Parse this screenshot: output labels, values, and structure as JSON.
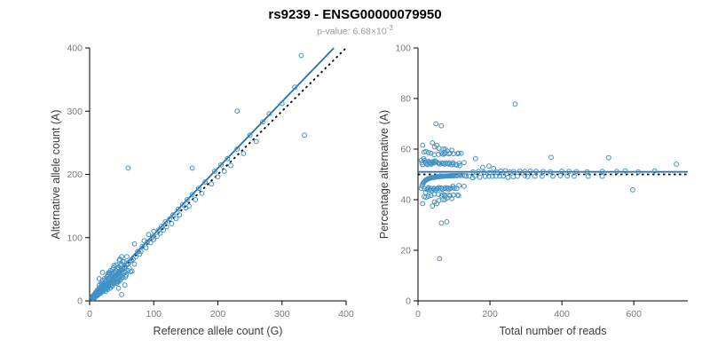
{
  "title": "rs9239 - ENSG00000079950",
  "subtitle": {
    "prefix": "p-value: ",
    "mantissa": "6.68×10",
    "exponent": "-3"
  },
  "colors": {
    "point": "#4292c6",
    "fit_line": "#2171b5",
    "reference_line": "#000000",
    "axis": "#000000",
    "tick_label": "#7a7a7a",
    "axis_label": "#3c3c3c",
    "subtitle": "#9a9a9a"
  },
  "chart_data": [
    {
      "type": "scatter",
      "title": "",
      "xlabel": "Reference allele count (G)",
      "ylabel": "Alternative allele count (A)",
      "xlim": [
        0,
        400
      ],
      "ylim": [
        0,
        400
      ],
      "xticks": [
        0,
        100,
        200,
        300,
        400
      ],
      "yticks": [
        0,
        100,
        200,
        300,
        400
      ],
      "grid": false,
      "legend": false,
      "fit_line": {
        "type": "regression",
        "slope": 1.05,
        "intercept": 0,
        "style": "solid"
      },
      "reference_line": {
        "type": "identity",
        "style": "dotted"
      },
      "points": [
        [
          4,
          5
        ],
        [
          5,
          4
        ],
        [
          5,
          6
        ],
        [
          6,
          7
        ],
        [
          6,
          5
        ],
        [
          7,
          6
        ],
        [
          7,
          9
        ],
        [
          8,
          7
        ],
        [
          8,
          10
        ],
        [
          9,
          8
        ],
        [
          9,
          11
        ],
        [
          10,
          9
        ],
        [
          10,
          12
        ],
        [
          10,
          8
        ],
        [
          11,
          10
        ],
        [
          11,
          13
        ],
        [
          12,
          11
        ],
        [
          12,
          9
        ],
        [
          12,
          14
        ],
        [
          13,
          12
        ],
        [
          13,
          16
        ],
        [
          14,
          13
        ],
        [
          14,
          11
        ],
        [
          14,
          17
        ],
        [
          15,
          14
        ],
        [
          15,
          18
        ],
        [
          15,
          12
        ],
        [
          16,
          15
        ],
        [
          16,
          19
        ],
        [
          16,
          13
        ],
        [
          17,
          16
        ],
        [
          17,
          20
        ],
        [
          18,
          17
        ],
        [
          18,
          14
        ],
        [
          18,
          22
        ],
        [
          19,
          18
        ],
        [
          19,
          23
        ],
        [
          20,
          19
        ],
        [
          20,
          16
        ],
        [
          20,
          24
        ],
        [
          21,
          20
        ],
        [
          21,
          26
        ],
        [
          22,
          21
        ],
        [
          22,
          17
        ],
        [
          22,
          27
        ],
        [
          23,
          22
        ],
        [
          23,
          28
        ],
        [
          24,
          23
        ],
        [
          24,
          19
        ],
        [
          25,
          24
        ],
        [
          25,
          30
        ],
        [
          25,
          20
        ],
        [
          26,
          25
        ],
        [
          26,
          31
        ],
        [
          27,
          26
        ],
        [
          27,
          21
        ],
        [
          28,
          27
        ],
        [
          28,
          33
        ],
        [
          29,
          28
        ],
        [
          29,
          23
        ],
        [
          30,
          29
        ],
        [
          30,
          36
        ],
        [
          30,
          24
        ],
        [
          31,
          30
        ],
        [
          32,
          31
        ],
        [
          32,
          26
        ],
        [
          32,
          38
        ],
        [
          33,
          32
        ],
        [
          34,
          33
        ],
        [
          34,
          27
        ],
        [
          34,
          40
        ],
        [
          35,
          34
        ],
        [
          35,
          42
        ],
        [
          36,
          35
        ],
        [
          36,
          29
        ],
        [
          37,
          36
        ],
        [
          37,
          44
        ],
        [
          38,
          37
        ],
        [
          38,
          30
        ],
        [
          39,
          38
        ],
        [
          39,
          46
        ],
        [
          40,
          39
        ],
        [
          40,
          32
        ],
        [
          40,
          48
        ],
        [
          41,
          40
        ],
        [
          42,
          41
        ],
        [
          42,
          34
        ],
        [
          43,
          42
        ],
        [
          43,
          50
        ],
        [
          44,
          43
        ],
        [
          44,
          35
        ],
        [
          45,
          44
        ],
        [
          45,
          53
        ],
        [
          46,
          45
        ],
        [
          46,
          37
        ],
        [
          47,
          46
        ],
        [
          48,
          47
        ],
        [
          48,
          38
        ],
        [
          48,
          56
        ],
        [
          49,
          48
        ],
        [
          50,
          49
        ],
        [
          50,
          40
        ],
        [
          50,
          58
        ],
        [
          52,
          51
        ],
        [
          52,
          42
        ],
        [
          54,
          53
        ],
        [
          54,
          62
        ],
        [
          55,
          54
        ],
        [
          56,
          45
        ],
        [
          58,
          57
        ],
        [
          60,
          59
        ],
        [
          60,
          48
        ],
        [
          62,
          61
        ],
        [
          65,
          64
        ],
        [
          35,
          23
        ],
        [
          23,
          35
        ],
        [
          28,
          42
        ],
        [
          42,
          28
        ],
        [
          18,
          28
        ],
        [
          28,
          18
        ],
        [
          15,
          25
        ],
        [
          25,
          15
        ],
        [
          20,
          32
        ],
        [
          32,
          20
        ],
        [
          38,
          56
        ],
        [
          56,
          38
        ],
        [
          45,
          30
        ],
        [
          30,
          45
        ],
        [
          50,
          70
        ],
        [
          20,
          45
        ],
        [
          15,
          35
        ],
        [
          45,
          20
        ],
        [
          55,
          25
        ],
        [
          50,
          10
        ],
        [
          13,
          9
        ],
        [
          9,
          13
        ],
        [
          17,
          12
        ],
        [
          12,
          17
        ],
        [
          21,
          15
        ],
        [
          15,
          21
        ],
        [
          24,
          33
        ],
        [
          33,
          24
        ],
        [
          27,
          38
        ],
        [
          38,
          27
        ],
        [
          31,
          44
        ],
        [
          44,
          31
        ],
        [
          36,
          50
        ],
        [
          50,
          36
        ],
        [
          41,
          57
        ],
        [
          57,
          41
        ],
        [
          46,
          64
        ],
        [
          64,
          46
        ],
        [
          7,
          10
        ],
        [
          10,
          7
        ],
        [
          5,
          8
        ],
        [
          8,
          5
        ],
        [
          33,
          48
        ],
        [
          48,
          33
        ],
        [
          26,
          19
        ],
        [
          19,
          26
        ],
        [
          29,
          40
        ],
        [
          40,
          29
        ],
        [
          37,
          52
        ],
        [
          52,
          37
        ],
        [
          43,
          31
        ],
        [
          31,
          43
        ],
        [
          47,
          66
        ],
        [
          66,
          47
        ],
        [
          53,
          44
        ],
        [
          44,
          53
        ],
        [
          58,
          70
        ],
        [
          70,
          58
        ],
        [
          62,
          52
        ],
        [
          52,
          62
        ],
        [
          68,
          66
        ],
        [
          72,
          70
        ],
        [
          75,
          78
        ],
        [
          78,
          74
        ],
        [
          70,
          90
        ],
        [
          80,
          78
        ],
        [
          82,
          86
        ],
        [
          85,
          95
        ],
        [
          88,
          84
        ],
        [
          90,
          93
        ],
        [
          92,
          105
        ],
        [
          95,
          92
        ],
        [
          98,
          101
        ],
        [
          100,
          97
        ],
        [
          100,
          110
        ],
        [
          105,
          102
        ],
        [
          108,
          112
        ],
        [
          110,
          107
        ],
        [
          112,
          118
        ],
        [
          115,
          112
        ],
        [
          118,
          125
        ],
        [
          120,
          117
        ],
        [
          125,
          130
        ],
        [
          128,
          122
        ],
        [
          130,
          136
        ],
        [
          135,
          130
        ],
        [
          138,
          145
        ],
        [
          140,
          136
        ],
        [
          145,
          152
        ],
        [
          150,
          147
        ],
        [
          152,
          160
        ],
        [
          155,
          150
        ],
        [
          160,
          168
        ],
        [
          160,
          210
        ],
        [
          165,
          160
        ],
        [
          170,
          178
        ],
        [
          175,
          170
        ],
        [
          180,
          188
        ],
        [
          190,
          185
        ],
        [
          195,
          205
        ],
        [
          200,
          196
        ],
        [
          205,
          215
        ],
        [
          210,
          205
        ],
        [
          60,
          210
        ],
        [
          215,
          225
        ],
        [
          220,
          214
        ],
        [
          230,
          240
        ],
        [
          230,
          300
        ],
        [
          240,
          233
        ],
        [
          250,
          262
        ],
        [
          260,
          252
        ],
        [
          270,
          283
        ],
        [
          280,
          296
        ],
        [
          300,
          312
        ],
        [
          320,
          338
        ],
        [
          330,
          388
        ],
        [
          335,
          262
        ]
      ]
    },
    {
      "type": "scatter",
      "title": "",
      "xlabel": "Total number of reads",
      "ylabel": "Percentage alternative (A)",
      "xlim": [
        0,
        750
      ],
      "ylim": [
        0,
        100
      ],
      "xticks": [
        0,
        200,
        400,
        600
      ],
      "yticks": [
        0,
        20,
        40,
        60,
        80,
        100
      ],
      "grid": false,
      "legend": false,
      "fit_line": {
        "type": "horizontal",
        "y": 51,
        "style": "solid"
      },
      "reference_line": {
        "type": "horizontal",
        "y": 50,
        "style": "dotted"
      },
      "points_source": {
        "derived_from_chart": 0,
        "x": "ref+alt",
        "y": "alt/(ref+alt)*100"
      }
    }
  ]
}
